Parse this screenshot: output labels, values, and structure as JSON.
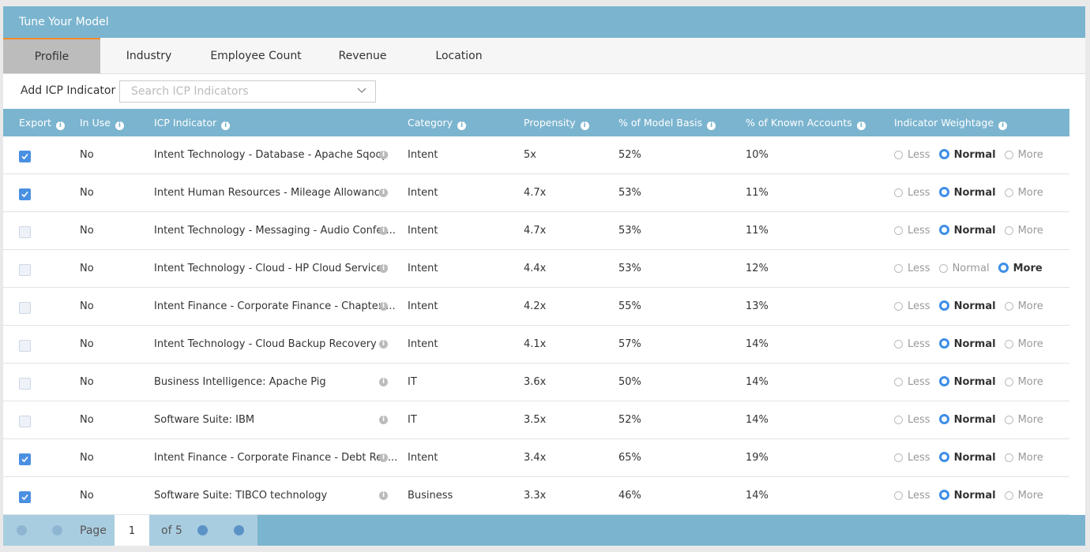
{
  "header": {
    "title": "Tune Your Model"
  },
  "tabs": {
    "items": [
      "Profile",
      "Industry",
      "Employee Count",
      "Revenue",
      "Location"
    ],
    "active": 0
  },
  "search": {
    "label": "Add ICP Indicator",
    "placeholder": "Search ICP Indicators"
  },
  "table": {
    "columns": [
      "Export",
      "In Use",
      "ICP Indicator",
      "Category",
      "Propensity",
      "% of Model Basis",
      "% of Known Accounts",
      "Indicator Weightage"
    ],
    "weightage_options": [
      "Less",
      "Normal",
      "More"
    ],
    "rows": [
      {
        "export": true,
        "in_use": "No",
        "indicator": "Intent Technology - Database - Apache Sqoop",
        "category": "Intent",
        "propensity": "5x",
        "model_basis": "52%",
        "known_accounts": "10%",
        "weightage": "Normal"
      },
      {
        "export": true,
        "in_use": "No",
        "indicator": "Intent Human Resources - Mileage Allowance",
        "category": "Intent",
        "propensity": "4.7x",
        "model_basis": "53%",
        "known_accounts": "11%",
        "weightage": "Normal"
      },
      {
        "export": false,
        "in_use": "No",
        "indicator": "Intent Technology - Messaging - Audio Confer...",
        "category": "Intent",
        "propensity": "4.7x",
        "model_basis": "53%",
        "known_accounts": "11%",
        "weightage": "Normal"
      },
      {
        "export": false,
        "in_use": "No",
        "indicator": "Intent Technology - Cloud - HP Cloud Services",
        "category": "Intent",
        "propensity": "4.4x",
        "model_basis": "53%",
        "known_accounts": "12%",
        "weightage": "More"
      },
      {
        "export": false,
        "in_use": "No",
        "indicator": "Intent Finance - Corporate Finance - Chapter ...",
        "category": "Intent",
        "propensity": "4.2x",
        "model_basis": "55%",
        "known_accounts": "13%",
        "weightage": "Normal"
      },
      {
        "export": false,
        "in_use": "No",
        "indicator": "Intent Technology - Cloud Backup Recovery",
        "category": "Intent",
        "propensity": "4.1x",
        "model_basis": "57%",
        "known_accounts": "14%",
        "weightage": "Normal"
      },
      {
        "export": false,
        "in_use": "No",
        "indicator": "Business Intelligence: Apache Pig",
        "category": "IT",
        "propensity": "3.6x",
        "model_basis": "50%",
        "known_accounts": "14%",
        "weightage": "Normal"
      },
      {
        "export": false,
        "in_use": "No",
        "indicator": "Software Suite: IBM",
        "category": "IT",
        "propensity": "3.5x",
        "model_basis": "52%",
        "known_accounts": "14%",
        "weightage": "Normal"
      },
      {
        "export": true,
        "in_use": "No",
        "indicator": "Intent Finance - Corporate Finance - Debt Res...",
        "category": "Intent",
        "propensity": "3.4x",
        "model_basis": "65%",
        "known_accounts": "19%",
        "weightage": "Normal"
      },
      {
        "export": true,
        "in_use": "No",
        "indicator": "Software Suite: TIBCO technology",
        "category": "Business",
        "propensity": "3.3x",
        "model_basis": "46%",
        "known_accounts": "14%",
        "weightage": "Normal"
      }
    ]
  },
  "pagination": {
    "label": "Page",
    "page": "1",
    "of": "of 5"
  }
}
